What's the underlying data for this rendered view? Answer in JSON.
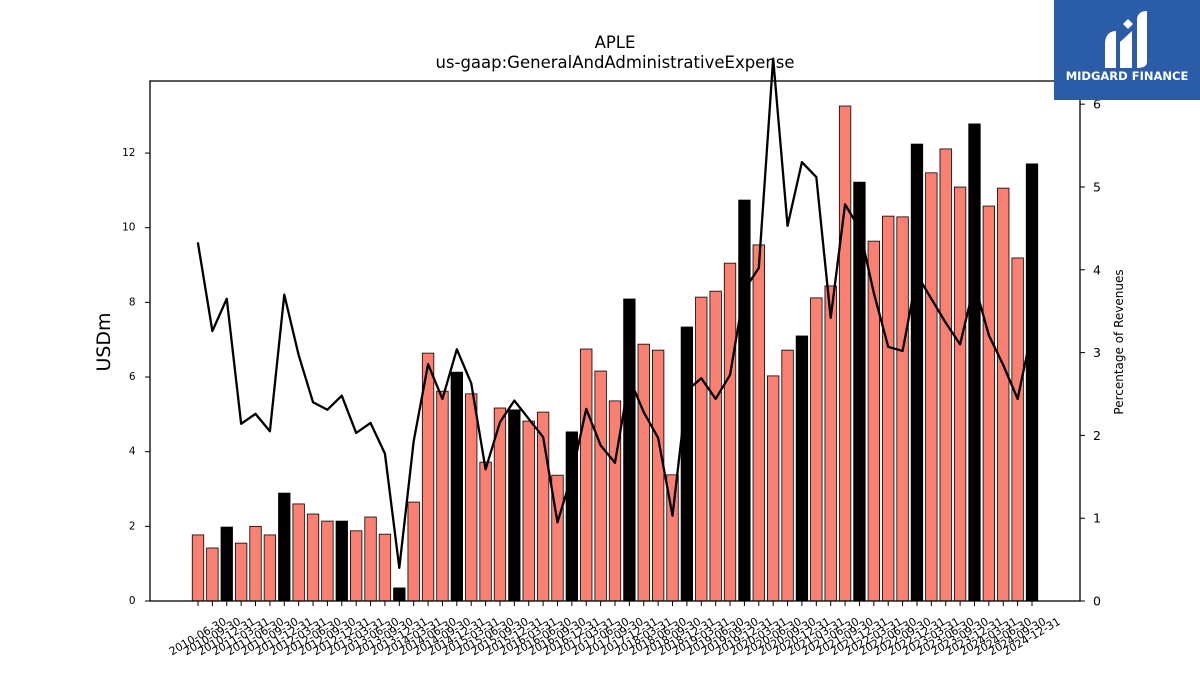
{
  "logo": {
    "text": "MIDGARD FINANCE",
    "background": "#2b5ca8",
    "icon": "midgard-logo-icon"
  },
  "chart_data": {
    "type": "bar",
    "title": "APLE",
    "subtitle": "us-gaap:GeneralAndAdministrativeExpense",
    "ylabel": "USDm",
    "y2label": "Percentage of Revenues",
    "ylim": [
      0,
      13.93
    ],
    "yticks": [
      0,
      2,
      4,
      6,
      8,
      10,
      12
    ],
    "y2lim": [
      0,
      6.28
    ],
    "y2ticks": [
      0,
      1,
      2,
      3,
      4,
      5,
      6
    ],
    "grid": false,
    "categories": [
      "2010-06-30",
      "2010-09-30",
      "2010-12-31",
      "2011-03-31",
      "2011-06-30",
      "2011-09-30",
      "2011-12-31",
      "2012-03-31",
      "2012-06-30",
      "2012-09-30",
      "2012-12-31",
      "2013-03-31",
      "2013-06-30",
      "2013-09-30",
      "2013-12-31",
      "2014-03-31",
      "2014-06-30",
      "2014-09-30",
      "2014-12-31",
      "2015-03-31",
      "2015-06-30",
      "2015-09-30",
      "2015-12-31",
      "2016-03-31",
      "2016-06-30",
      "2016-09-30",
      "2016-12-31",
      "2017-03-31",
      "2017-06-30",
      "2017-09-30",
      "2017-12-31",
      "2018-03-31",
      "2018-06-30",
      "2018-09-30",
      "2018-12-31",
      "2019-03-31",
      "2019-06-30",
      "2019-09-30",
      "2019-12-31",
      "2020-03-31",
      "2020-06-30",
      "2020-09-30",
      "2020-12-31",
      "2021-03-31",
      "2021-06-30",
      "2021-09-30",
      "2021-12-31",
      "2022-03-31",
      "2022-06-30",
      "2022-09-30",
      "2022-12-31",
      "2023-03-31",
      "2023-06-30",
      "2023-09-30",
      "2023-12-31",
      "2024-03-31",
      "2024-06-30",
      "2024-09-30",
      "2024-12-31"
    ],
    "series": [
      {
        "type": "bar",
        "y_axis": "left",
        "color": "#fa8072",
        "highlight_color": "#000000",
        "values": [
          1.77,
          1.42,
          1.98,
          1.55,
          2.0,
          1.77,
          2.89,
          2.6,
          2.33,
          2.14,
          2.14,
          1.88,
          2.25,
          1.79,
          0.35,
          2.65,
          6.64,
          5.62,
          6.13,
          5.55,
          3.72,
          5.17,
          5.12,
          4.82,
          5.06,
          3.37,
          4.53,
          6.75,
          6.16,
          5.36,
          8.09,
          6.88,
          6.72,
          3.38,
          7.34,
          8.14,
          8.3,
          9.05,
          10.74,
          9.54,
          6.03,
          6.72,
          7.1,
          8.12,
          8.44,
          13.26,
          11.22,
          9.64,
          10.31,
          10.29,
          12.24,
          11.47,
          12.11,
          11.09,
          12.78,
          10.58,
          11.06,
          9.19,
          11.71
        ]
      },
      {
        "type": "line",
        "y_axis": "right",
        "color": "#000000",
        "values": [
          4.32,
          3.26,
          3.65,
          2.14,
          2.26,
          2.05,
          3.7,
          2.97,
          2.4,
          2.31,
          2.48,
          2.03,
          2.15,
          1.78,
          0.4,
          1.93,
          2.86,
          2.44,
          3.04,
          2.63,
          1.59,
          2.16,
          2.42,
          2.2,
          1.98,
          0.95,
          1.52,
          2.32,
          1.88,
          1.67,
          2.69,
          2.28,
          1.97,
          1.03,
          2.54,
          2.69,
          2.44,
          2.73,
          3.76,
          4.02,
          6.55,
          4.53,
          5.3,
          5.12,
          3.42,
          4.79,
          4.5,
          3.72,
          3.07,
          3.02,
          3.94,
          3.65,
          3.36,
          3.1,
          3.83,
          3.21,
          2.85,
          2.44,
          3.27
        ]
      }
    ]
  }
}
